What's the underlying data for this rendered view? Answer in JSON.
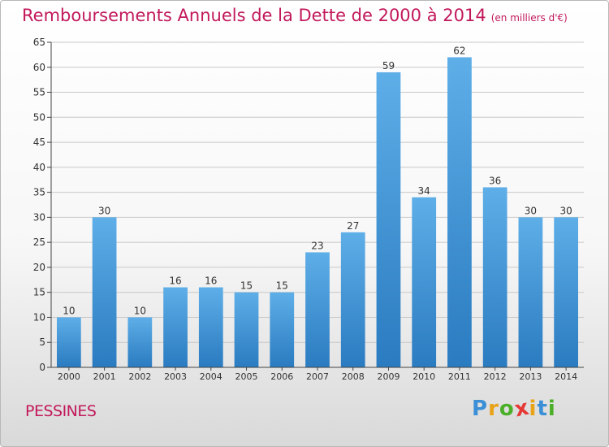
{
  "chart_data": {
    "type": "bar",
    "title": "Remboursements Annuels de la Dette de 2000 à 2014",
    "subtitle": "(en milliers d'€)",
    "xlabel": "",
    "ylabel": "",
    "ylim": [
      0,
      65
    ],
    "yticks": [
      0,
      5,
      10,
      15,
      20,
      25,
      30,
      35,
      40,
      45,
      50,
      55,
      60,
      65
    ],
    "categories": [
      "2000",
      "2001",
      "2002",
      "2003",
      "2004",
      "2005",
      "2006",
      "2007",
      "2008",
      "2009",
      "2010",
      "2011",
      "2012",
      "2013",
      "2014"
    ],
    "values": [
      10,
      30,
      10,
      16,
      16,
      15,
      15,
      23,
      27,
      59,
      34,
      62,
      36,
      30,
      30
    ],
    "grid": true,
    "legend": "none"
  },
  "footer": {
    "commune": "PESSINES",
    "logo_letters": [
      "P",
      "r",
      "o",
      "x",
      "i",
      "t",
      "i"
    ],
    "logo_colors": [
      "#3a8fd6",
      "#e8a317",
      "#4caf2a",
      "#e53935",
      "#e8a317",
      "#3a8fd6",
      "#4caf2a"
    ]
  },
  "colors": {
    "bar_top": "#5eaee8",
    "bar_bottom": "#2a7bc0",
    "title": "#c2185b",
    "grid": "#c8c8c8",
    "axis": "#444444"
  }
}
